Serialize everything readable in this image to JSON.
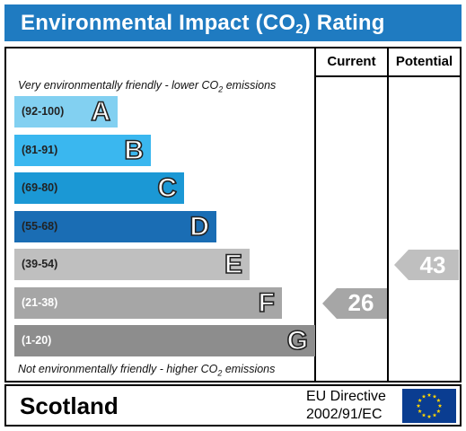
{
  "title": "Environmental Impact (CO",
  "title_sub": "2",
  "title_end": ") Rating",
  "columns": {
    "current": "Current",
    "potential": "Potential"
  },
  "top_note": {
    "pre": "Very environmentally friendly - lower CO",
    "sub": "2",
    "post": " emissions"
  },
  "bottom_note": {
    "pre": "Not environmentally friendly - higher CO",
    "sub": "2",
    "post": " emissions"
  },
  "chart_data": {
    "type": "bar",
    "bands": [
      {
        "letter": "A",
        "range": "(92-100)",
        "color": "#82d0f1"
      },
      {
        "letter": "B",
        "range": "(81-91)",
        "color": "#3ab7ef"
      },
      {
        "letter": "C",
        "range": "(69-80)",
        "color": "#1b98d5"
      },
      {
        "letter": "D",
        "range": "(55-68)",
        "color": "#1a6db4"
      },
      {
        "letter": "E",
        "range": "(39-54)",
        "color": "#bfbfbf"
      },
      {
        "letter": "F",
        "range": "(21-38)",
        "color": "#a6a6a6"
      },
      {
        "letter": "G",
        "range": "(1-20)",
        "color": "#8d8d8d"
      }
    ],
    "current": {
      "value": "26",
      "band": "F",
      "color": "#a6a6a6"
    },
    "potential": {
      "value": "43",
      "band": "E",
      "color": "#bfbfbf"
    }
  },
  "footer": {
    "country": "Scotland",
    "directive_line1": "EU Directive",
    "directive_line2": "2002/91/EC"
  }
}
